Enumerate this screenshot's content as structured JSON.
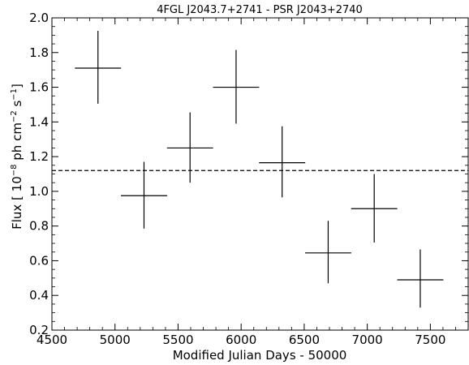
{
  "chart_data": {
    "type": "scatter",
    "title": "4FGL J2043.7+2741 - PSR J2043+2740",
    "xlabel": "Modified Julian Days - 50000",
    "ylabel_parts": {
      "prefix": "Flux [ 10",
      "exp1": "−8",
      "middle": " ph cm",
      "exp2": "−2",
      "middle2": " s",
      "exp3": "−1",
      "suffix": "]"
    },
    "xlim": [
      4500,
      7800
    ],
    "ylim": [
      0.2,
      2.0
    ],
    "xticks": [
      4500,
      5000,
      5500,
      6000,
      6500,
      7000,
      7500
    ],
    "yticks": [
      0.2,
      0.4,
      0.6,
      0.8,
      1.0,
      1.2,
      1.4,
      1.6,
      1.8,
      2.0
    ],
    "xtick_labels": [
      "4500",
      "5000",
      "5500",
      "6000",
      "6500",
      "7000",
      "7500"
    ],
    "ytick_labels": [
      "0.2",
      "0.4",
      "0.6",
      "0.8",
      "1.0",
      "1.2",
      "1.4",
      "1.6",
      "1.8",
      "2.0"
    ],
    "points": [
      {
        "x": 4865,
        "xerr": 183,
        "y": 1.71,
        "yerr_low": 0.205,
        "yerr_high": 0.215
      },
      {
        "x": 5230,
        "xerr": 183,
        "y": 0.975,
        "yerr_low": 0.19,
        "yerr_high": 0.195
      },
      {
        "x": 5595,
        "xerr": 183,
        "y": 1.25,
        "yerr_low": 0.2,
        "yerr_high": 0.205
      },
      {
        "x": 5960,
        "xerr": 183,
        "y": 1.6,
        "yerr_low": 0.21,
        "yerr_high": 0.215
      },
      {
        "x": 6325,
        "xerr": 183,
        "y": 1.165,
        "yerr_low": 0.2,
        "yerr_high": 0.21
      },
      {
        "x": 6690,
        "xerr": 183,
        "y": 0.645,
        "yerr_low": 0.175,
        "yerr_high": 0.185
      },
      {
        "x": 7055,
        "xerr": 183,
        "y": 0.9,
        "yerr_low": 0.195,
        "yerr_high": 0.2
      },
      {
        "x": 7420,
        "xerr": 183,
        "y": 0.49,
        "yerr_low": 0.16,
        "yerr_high": 0.175
      }
    ],
    "mean_flux": 1.12,
    "minor_ticks": true,
    "grid": false,
    "legend": "none",
    "colors": {
      "data": "#000000",
      "mean_line": "#000000"
    }
  }
}
